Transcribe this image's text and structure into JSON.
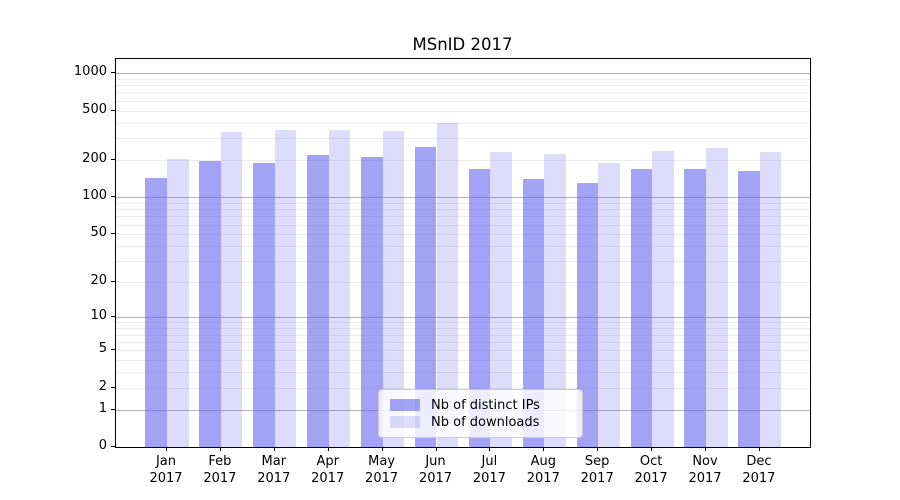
{
  "title": "MSnID 2017",
  "chart_data": {
    "type": "bar",
    "title": "MSnID 2017",
    "categories": [
      "Jan",
      "Feb",
      "Mar",
      "Apr",
      "May",
      "Jun",
      "Jul",
      "Aug",
      "Sep",
      "Oct",
      "Nov",
      "Dec"
    ],
    "x_year_label": "2017",
    "series": [
      {
        "name": "Nb of distinct IPs",
        "values": [
          143,
          197,
          189,
          219,
          210,
          255,
          168,
          140,
          131,
          170,
          168,
          162
        ],
        "color": "#6666ee",
        "alpha": 0.6
      },
      {
        "name": "Nb of downloads",
        "values": [
          204,
          336,
          351,
          347,
          341,
          397,
          232,
          225,
          191,
          236,
          252,
          232
        ],
        "color": "#6666ee",
        "alpha": 0.22
      }
    ],
    "y_axis": {
      "scale": "log10(1+x)",
      "tick_labels": [
        0,
        1,
        2,
        5,
        10,
        20,
        50,
        100,
        200,
        500,
        1000
      ],
      "major_gridlines": [
        1,
        10,
        100,
        1000
      ],
      "minor_gridlines": [
        2,
        3,
        4,
        5,
        6,
        7,
        8,
        9,
        20,
        30,
        40,
        50,
        60,
        70,
        80,
        90,
        200,
        300,
        400,
        500,
        600,
        700,
        800,
        900
      ],
      "ylim": [
        0,
        1300
      ]
    },
    "grid": true,
    "legend_position": "lower center"
  },
  "colors": {
    "background": "#ffffff",
    "axis": "#000000",
    "major_grid": "#b3b3b3",
    "minor_grid": "#ececec",
    "legend_border": "#cccccc",
    "text": "#000000"
  }
}
